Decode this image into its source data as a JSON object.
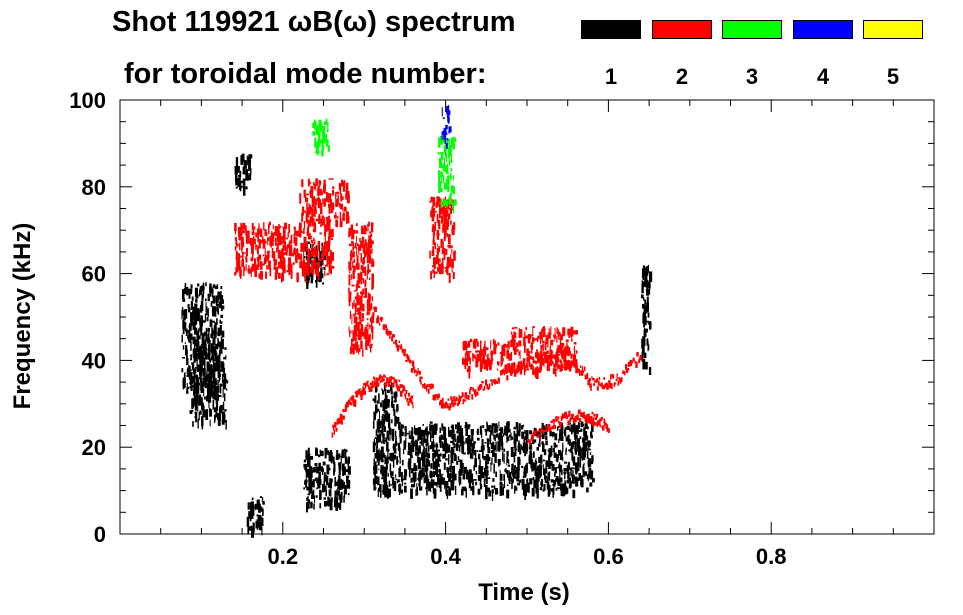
{
  "header": {
    "title_line1": "Shot 119921 ωB(ω) spectrum",
    "title_line2": "for toroidal mode number:"
  },
  "legend": [
    {
      "label": "1",
      "color": "#000000"
    },
    {
      "label": "2",
      "color": "#ff0000"
    },
    {
      "label": "3",
      "color": "#00ff00"
    },
    {
      "label": "4",
      "color": "#0000ff"
    },
    {
      "label": "5",
      "color": "#ffff00"
    }
  ],
  "chart_data": {
    "type": "scatter",
    "title": "Shot 119921 ωB(ω) spectrum",
    "xlabel": "Time (s)",
    "ylabel": "Frequency (kHz)",
    "xlim": [
      0.0,
      1.0
    ],
    "ylim": [
      0,
      100
    ],
    "xticks": [
      {
        "value": 0.2,
        "label": "0.2"
      },
      {
        "value": 0.4,
        "label": "0.4"
      },
      {
        "value": 0.6,
        "label": "0.6"
      },
      {
        "value": 0.8,
        "label": "0.8"
      }
    ],
    "yticks": [
      {
        "value": 0,
        "label": "0"
      },
      {
        "value": 20,
        "label": "20"
      },
      {
        "value": 40,
        "label": "40"
      },
      {
        "value": 60,
        "label": "60"
      },
      {
        "value": 80,
        "label": "80"
      },
      {
        "value": 100,
        "label": "100"
      }
    ],
    "series": [
      {
        "name": "1",
        "color": "#000000",
        "regions": [
          {
            "t0": 0.075,
            "t1": 0.125,
            "f0": 33,
            "f1": 58
          },
          {
            "t0": 0.085,
            "t1": 0.13,
            "f0": 26,
            "f1": 45
          },
          {
            "t0": 0.14,
            "t1": 0.16,
            "f0": 80,
            "f1": 88
          },
          {
            "t0": 0.155,
            "t1": 0.175,
            "f0": 1,
            "f1": 9
          },
          {
            "t0": 0.225,
            "t1": 0.25,
            "f0": 58,
            "f1": 68
          },
          {
            "t0": 0.225,
            "t1": 0.28,
            "f0": 7,
            "f1": 20
          },
          {
            "t0": 0.31,
            "t1": 0.58,
            "f0": 10,
            "f1": 26
          },
          {
            "t0": 0.31,
            "t1": 0.34,
            "f0": 26,
            "f1": 35
          },
          {
            "t0": 0.64,
            "t1": 0.65,
            "f0": 38,
            "f1": 62
          }
        ]
      },
      {
        "name": "2",
        "color": "#ff0000",
        "regions": [
          {
            "t0": 0.14,
            "t1": 0.26,
            "f0": 60,
            "f1": 72
          },
          {
            "t0": 0.22,
            "t1": 0.28,
            "f0": 72,
            "f1": 82
          },
          {
            "t0": 0.28,
            "t1": 0.31,
            "f0": 42,
            "f1": 72
          },
          {
            "t0": 0.38,
            "t1": 0.41,
            "f0": 60,
            "f1": 78
          },
          {
            "t0": 0.42,
            "t1": 0.48,
            "f0": 38,
            "f1": 45
          },
          {
            "t0": 0.48,
            "t1": 0.56,
            "f0": 38,
            "f1": 48
          }
        ],
        "curves": [
          {
            "t": [
              0.31,
              0.34,
              0.37,
              0.4,
              0.43,
              0.47,
              0.51,
              0.55,
              0.58,
              0.61,
              0.64
            ],
            "f": [
              52,
              44,
              36,
              30,
              33,
              37,
              41,
              42,
              35,
              36,
              42
            ]
          },
          {
            "t": [
              0.26,
              0.28,
              0.3,
              0.32,
              0.34,
              0.36
            ],
            "f": [
              24,
              30,
              34,
              36,
              35,
              30
            ]
          },
          {
            "t": [
              0.5,
              0.53,
              0.56,
              0.58,
              0.6
            ],
            "f": [
              22,
              26,
              28,
              27,
              25
            ]
          }
        ]
      },
      {
        "name": "3",
        "color": "#00ff00",
        "regions": [
          {
            "t0": 0.39,
            "t1": 0.41,
            "f0": 76,
            "f1": 92
          },
          {
            "t0": 0.235,
            "t1": 0.255,
            "f0": 88,
            "f1": 96
          }
        ]
      },
      {
        "name": "4",
        "color": "#0000ff",
        "regions": [
          {
            "t0": 0.395,
            "t1": 0.405,
            "f0": 90,
            "f1": 99
          }
        ]
      },
      {
        "name": "5",
        "color": "#ffff00",
        "regions": []
      }
    ]
  }
}
